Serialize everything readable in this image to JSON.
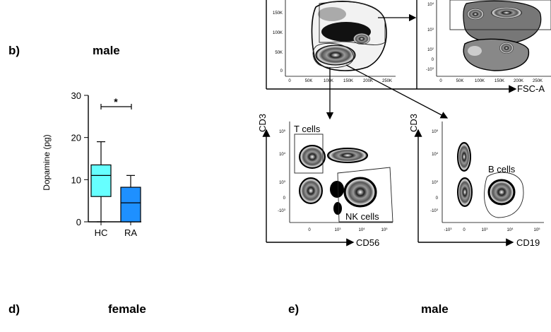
{
  "panel_b": {
    "label": "b)",
    "title": "male"
  },
  "panel_d": {
    "label": "d)",
    "title": "female"
  },
  "panel_e": {
    "label": "e)",
    "title": "male"
  },
  "chart_data": [
    {
      "type": "box",
      "title": "male",
      "ylabel": "Dopamine (pg)",
      "ylim": [
        0,
        30
      ],
      "yticks": [
        "0",
        "10",
        "20",
        "30"
      ],
      "categories": [
        "HC",
        "RA"
      ],
      "boxes": [
        {
          "name": "HC",
          "min": 0,
          "q1": 6,
          "median": 11,
          "q3": 13.5,
          "max": 19,
          "color": "#66ffff"
        },
        {
          "name": "RA",
          "min": 0,
          "q1": 0,
          "median": 4.5,
          "q3": 8.2,
          "max": 11,
          "color": "#1e90ff"
        }
      ],
      "significance": "*"
    },
    {
      "type": "scatter",
      "subtype": "flow-cytometry-density",
      "xlabel": "FSC-A",
      "xticks": [
        "0",
        "50K",
        "100K",
        "150K",
        "200K",
        "250K"
      ],
      "yticks": [
        "0",
        "50K",
        "100K",
        "150K"
      ]
    },
    {
      "type": "scatter",
      "subtype": "flow-cytometry-density",
      "ylabel": "CD3",
      "xlabel": "CD56",
      "gates": [
        "T cells",
        "NK cells"
      ]
    },
    {
      "type": "scatter",
      "subtype": "flow-cytometry-density",
      "ylabel": "CD3",
      "xlabel": "CD19",
      "gates": [
        "B cells"
      ]
    }
  ]
}
